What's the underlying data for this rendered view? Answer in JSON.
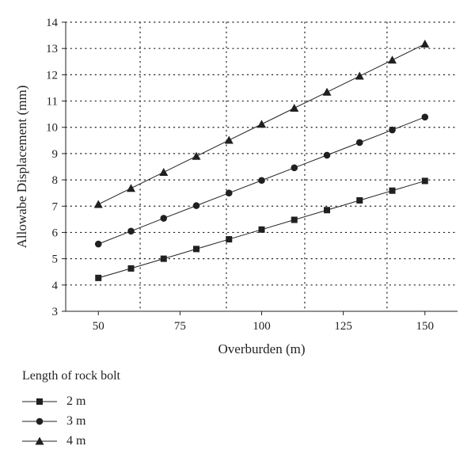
{
  "chart_data": {
    "type": "line",
    "xlabel": "Overburden (m)",
    "ylabel": "Allowabe Displacement (mm)",
    "xlim": [
      40,
      160
    ],
    "ylim": [
      3,
      14
    ],
    "xticks": [
      50,
      75,
      100,
      125,
      150
    ],
    "yticks": [
      3,
      4,
      5,
      6,
      7,
      8,
      9,
      10,
      11,
      12,
      13,
      14
    ],
    "grid": "dotted",
    "x": [
      50,
      60,
      70,
      80,
      90,
      100,
      110,
      120,
      130,
      140,
      150
    ],
    "series": [
      {
        "name": "2 m",
        "marker": "square",
        "values": [
          4.27,
          4.63,
          5.0,
          5.37,
          5.74,
          6.11,
          6.48,
          6.85,
          7.22,
          7.59,
          7.96
        ]
      },
      {
        "name": "3 m",
        "marker": "circle",
        "values": [
          5.56,
          6.05,
          6.54,
          7.02,
          7.5,
          7.98,
          8.46,
          8.94,
          9.42,
          9.9,
          10.39
        ]
      },
      {
        "name": "4 m",
        "marker": "triangle",
        "values": [
          7.07,
          7.68,
          8.29,
          8.9,
          9.51,
          10.12,
          10.73,
          11.34,
          11.95,
          12.56,
          13.17
        ]
      }
    ],
    "legend": {
      "title": "Length of rock bolt",
      "placement": "below"
    },
    "colors": {
      "line": "#231f20",
      "grid": "#231f20"
    }
  }
}
